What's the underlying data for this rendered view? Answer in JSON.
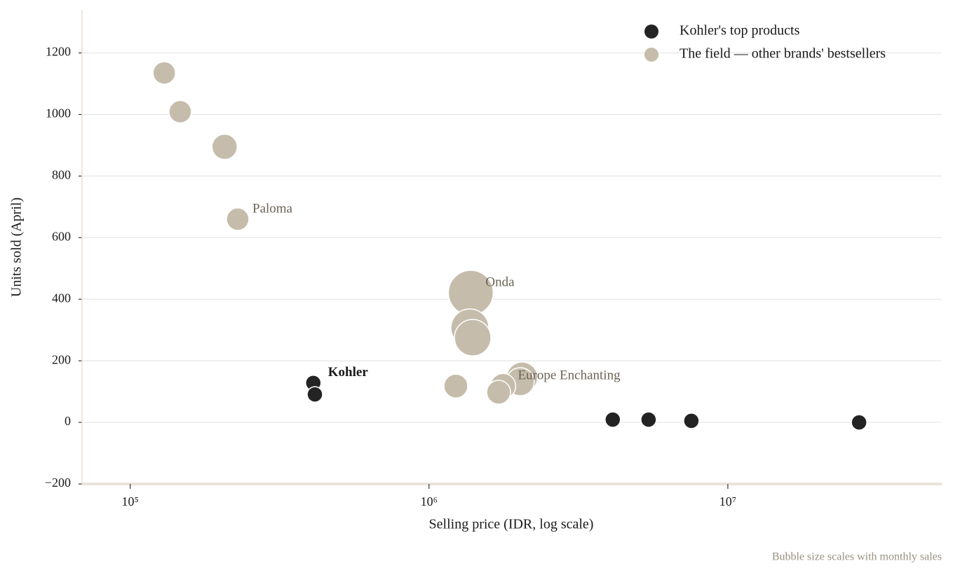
{
  "chart_data": {
    "type": "scatter",
    "x_label": "Selling price (IDR, log scale)",
    "y_label": "Units sold (April)",
    "note": "Bubble size scales with monthly sales",
    "xscale": "log",
    "xlim": [
      69000,
      52000000
    ],
    "xticks": [
      {
        "value": 100000,
        "label": "10⁵"
      },
      {
        "value": 1000000,
        "label": "10⁶"
      },
      {
        "value": 10000000,
        "label": "10⁷"
      }
    ],
    "ylim": [
      -200,
      1340
    ],
    "yticks": [
      {
        "value": -200,
        "label": "−200"
      },
      0,
      200,
      400,
      600,
      800,
      1000,
      1200
    ],
    "grid": true,
    "legend": "upper right",
    "series": [
      {
        "name": "Kohler's top products",
        "color": "#232323",
        "x": [
          410000,
          415000,
          4120000,
          5430000,
          7550000,
          27500000
        ],
        "values": [
          128,
          91,
          9,
          9,
          5,
          0
        ],
        "sizes": [
          121,
          121,
          121,
          121,
          121,
          121
        ],
        "labels": [
          "Kohler",
          null,
          null,
          null,
          null,
          null
        ]
      },
      {
        "name": "The field — other brands' bestsellers",
        "color": "#c5bcab",
        "x": [
          130000,
          147000,
          207000,
          229000,
          1380000,
          1370000,
          1400000,
          1230000,
          2050000,
          2020000,
          1770000,
          1710000
        ],
        "values": [
          1135,
          1009,
          895,
          660,
          421,
          307,
          275,
          118,
          146,
          132,
          118,
          98
        ],
        "sizes": [
          256,
          256,
          324,
          256,
          1024,
          729,
          676,
          289,
          484,
          400,
          324,
          289
        ],
        "labels": [
          null,
          null,
          null,
          "Paloma",
          "Onda",
          null,
          null,
          null,
          null,
          null,
          "Europe Enchanting",
          null
        ]
      }
    ]
  }
}
